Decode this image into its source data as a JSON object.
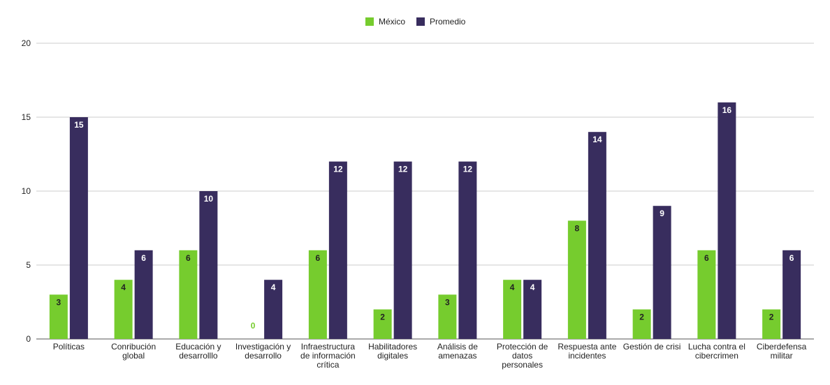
{
  "chart_data": {
    "type": "bar",
    "categories": [
      [
        "Políticas"
      ],
      [
        "Conribución",
        "global"
      ],
      [
        "Educación y",
        "desarrolllo"
      ],
      [
        "Investigación y",
        "desarrollo"
      ],
      [
        "Infraestructura",
        "de información",
        "crítica"
      ],
      [
        "Habilitadores",
        "digitales"
      ],
      [
        "Análisis de",
        "amenazas"
      ],
      [
        "Protección de",
        "datos",
        "personales"
      ],
      [
        "Respuesta ante",
        "incidentes"
      ],
      [
        "Gestión de crisi"
      ],
      [
        "Lucha contra el",
        "cibercrimen"
      ],
      [
        "Ciberdefensa",
        "militar"
      ]
    ],
    "series": [
      {
        "name": "México",
        "color": "#76cc2e",
        "values": [
          3,
          4,
          6,
          0,
          6,
          2,
          3,
          4,
          8,
          2,
          6,
          2
        ]
      },
      {
        "name": "Promedio",
        "color": "#382d5e",
        "values": [
          15,
          6,
          10,
          4,
          12,
          12,
          12,
          4,
          14,
          9,
          16,
          6
        ]
      }
    ],
    "ylim": [
      0,
      20
    ],
    "yticks": [
      0,
      5,
      10,
      15,
      20
    ],
    "legend": "top-center",
    "grid": true,
    "title": "",
    "xlabel": "",
    "ylabel": ""
  }
}
